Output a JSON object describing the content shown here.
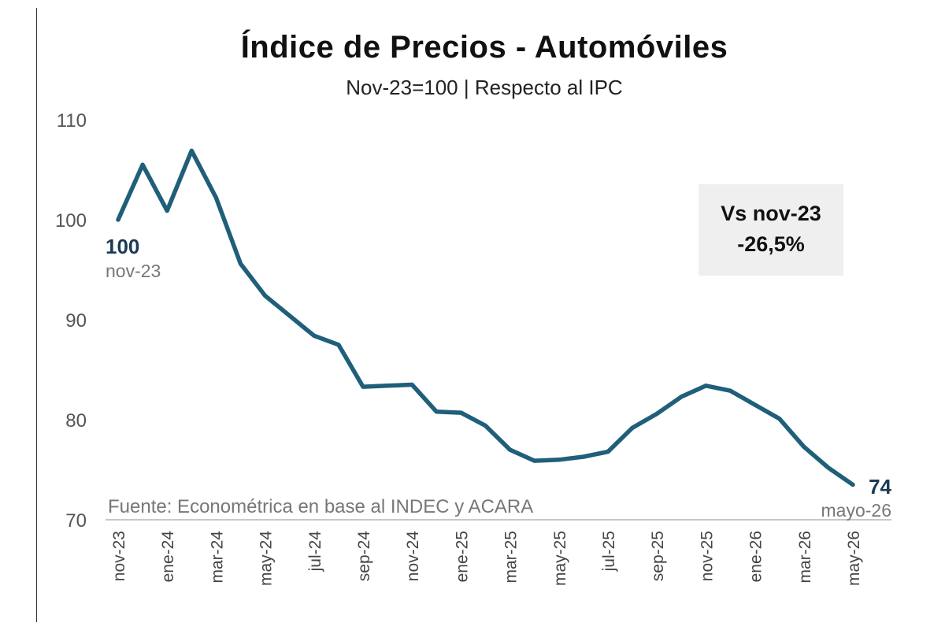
{
  "chart_data": {
    "type": "line",
    "title": "Índice de Precios - Automóviles",
    "subtitle": "Nov-23=100 | Respecto al IPC",
    "xlabel": "",
    "ylabel": "",
    "ylim": [
      70,
      110
    ],
    "yticks": [
      "70",
      "80",
      "90",
      "100",
      "110"
    ],
    "tick_labels": [
      "nov-23",
      "ene-24",
      "mar-24",
      "may-24",
      "jul-24",
      "sep-24",
      "nov-24",
      "ene-25",
      "mar-25",
      "may-25",
      "jul-25",
      "sep-25",
      "nov-25",
      "ene-26",
      "mar-26",
      "may-26"
    ],
    "x": [
      "nov-23",
      "dic-23",
      "ene-24",
      "feb-24",
      "mar-24",
      "abr-24",
      "may-24",
      "jun-24",
      "jul-24",
      "ago-24",
      "sep-24",
      "oct-24",
      "nov-24",
      "dic-24",
      "ene-25",
      "feb-25",
      "mar-25",
      "abr-25",
      "may-25",
      "jun-25",
      "jul-25",
      "ago-25",
      "sep-25",
      "oct-25",
      "nov-25",
      "dic-25",
      "ene-26",
      "feb-26",
      "mar-26",
      "abr-26",
      "may-26"
    ],
    "series": [
      {
        "color": "#1f5f7a",
        "values": [
          100.0,
          105.5,
          100.9,
          106.9,
          102.2,
          95.6,
          92.4,
          90.4,
          88.4,
          87.5,
          83.3,
          83.4,
          83.5,
          80.8,
          80.7,
          79.4,
          77.0,
          75.9,
          76.0,
          76.3,
          76.8,
          79.2,
          80.6,
          82.3,
          83.4,
          82.9,
          81.5,
          80.1,
          77.3,
          75.2,
          73.5
        ]
      }
    ],
    "grid": false,
    "start_label": {
      "value": "100",
      "date": "nov-23"
    },
    "end_label": {
      "value": "74",
      "date": "mayo-26"
    },
    "source": "Fuente: Econométrica en base al INDEC y ACARA"
  },
  "callout": {
    "line1": "Vs nov-23",
    "line2": "-26,5%"
  },
  "colors": {
    "line": "#1f5f7a",
    "label_value": "#1b3a54",
    "callout_bg": "#efefef"
  }
}
